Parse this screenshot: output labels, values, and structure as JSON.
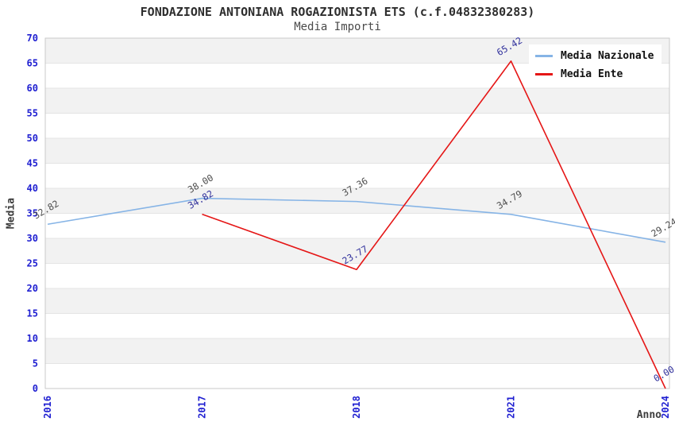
{
  "header": {
    "title": "FONDAZIONE ANTONIANA ROGAZIONISTA ETS (c.f.04832380283)",
    "subtitle": "Media Importi"
  },
  "axes": {
    "x_label": "Anno",
    "y_label": "Media"
  },
  "legend": {
    "position": "top-right",
    "items": [
      {
        "label": "Media Nazionale",
        "color": "#86b4e6"
      },
      {
        "label": "Media Ente",
        "color": "#e51616"
      }
    ]
  },
  "colors": {
    "tick_label": "#1f1fd1",
    "band_fill": "#f2f2f2",
    "band_line": "#e4e4e4",
    "plot_border": "#c9c9c9",
    "nazionale_line": "#86b4e6",
    "ente_line": "#e51616",
    "nazionale_point_label": "#4d4d4d",
    "ente_point_label": "#30309c"
  },
  "chart_data": {
    "type": "line",
    "title": "FONDAZIONE ANTONIANA ROGAZIONISTA ETS (c.f.04832380283)",
    "subtitle": "Media Importi",
    "xlabel": "Anno",
    "ylabel": "Media",
    "categories": [
      "2016",
      "2017",
      "2018",
      "2021",
      "2024"
    ],
    "series": [
      {
        "name": "Media Nazionale",
        "color": "#86b4e6",
        "label_color": "#4d4d4d",
        "values": [
          32.82,
          38.0,
          37.36,
          34.79,
          29.24
        ],
        "point_labels": [
          "32.82",
          "38.00",
          "37.36",
          "34.79",
          "29.24"
        ]
      },
      {
        "name": "Media Ente",
        "color": "#e51616",
        "label_color": "#30309c",
        "values": [
          null,
          34.82,
          23.77,
          65.42,
          0.0
        ],
        "point_labels": [
          null,
          "34.82",
          "23.77",
          "65.42",
          "0.00"
        ]
      }
    ],
    "ylim": [
      0,
      70
    ],
    "ytick_step": 5,
    "yticks": [
      0,
      5,
      10,
      15,
      20,
      25,
      30,
      35,
      40,
      45,
      50,
      55,
      60,
      65,
      70
    ],
    "grid": "horizontal-alternating-bands",
    "legend_position": "top-right"
  }
}
